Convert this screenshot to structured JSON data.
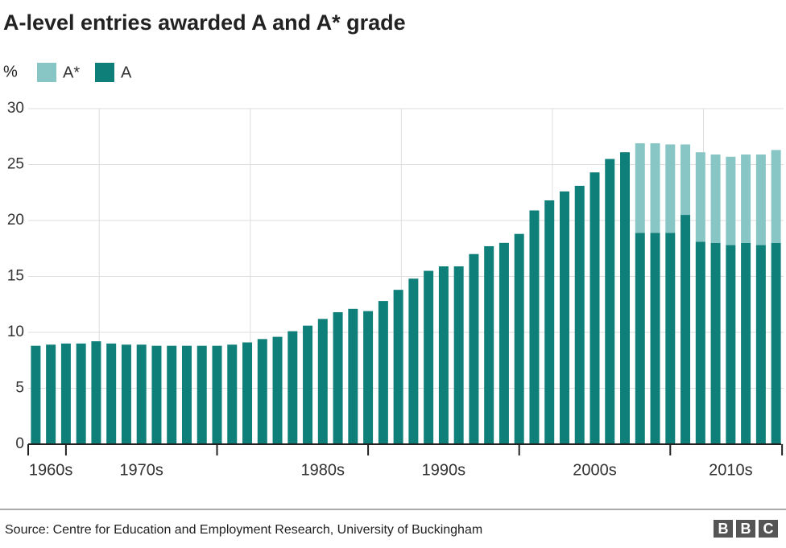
{
  "chart_data": {
    "type": "stacked_bar",
    "title": "A-level entries awarded A and A* grade",
    "y_unit": "%",
    "categories": [
      null,
      "1960s",
      null,
      null,
      null,
      null,
      null,
      "1970s",
      null,
      null,
      null,
      null,
      null,
      null,
      null,
      null,
      null,
      null,
      null,
      "1980s",
      null,
      null,
      null,
      null,
      null,
      null,
      null,
      "1990s",
      null,
      null,
      null,
      null,
      null,
      null,
      null,
      null,
      null,
      "2000s",
      null,
      null,
      null,
      null,
      null,
      null,
      null,
      null,
      "2010s",
      null,
      null,
      null
    ],
    "series": [
      {
        "name": "A",
        "color": "#0f7f7a",
        "values": [
          8.8,
          8.9,
          9.0,
          9.0,
          9.2,
          9.0,
          8.9,
          8.9,
          8.8,
          8.8,
          8.8,
          8.8,
          8.8,
          8.9,
          9.1,
          9.4,
          9.6,
          10.1,
          10.6,
          11.2,
          11.8,
          12.1,
          11.9,
          12.8,
          13.8,
          14.8,
          15.5,
          15.9,
          15.9,
          17.0,
          17.7,
          18.0,
          18.8,
          20.9,
          21.8,
          22.6,
          23.1,
          24.3,
          25.5,
          26.1,
          18.9,
          18.9,
          18.9,
          20.5,
          18.1,
          18.0,
          17.8,
          18.0,
          17.8,
          18.0
        ]
      },
      {
        "name": "A*",
        "color": "#88c5c5",
        "values": [
          null,
          null,
          null,
          null,
          null,
          null,
          null,
          null,
          null,
          null,
          null,
          null,
          null,
          null,
          null,
          null,
          null,
          null,
          null,
          null,
          null,
          null,
          null,
          null,
          null,
          null,
          null,
          null,
          null,
          null,
          null,
          null,
          null,
          null,
          null,
          null,
          null,
          null,
          null,
          null,
          8.0,
          8.0,
          7.9,
          6.3,
          8.0,
          7.9,
          7.9,
          7.9,
          8.1,
          8.3
        ]
      }
    ],
    "ylim": [
      0,
      30
    ],
    "yticks": [
      0,
      5,
      10,
      15,
      20,
      25,
      30
    ],
    "grid": true,
    "source": "Source: Centre for Education and Employment Research, University of Buckingham",
    "logo": [
      "B",
      "B",
      "C"
    ]
  }
}
